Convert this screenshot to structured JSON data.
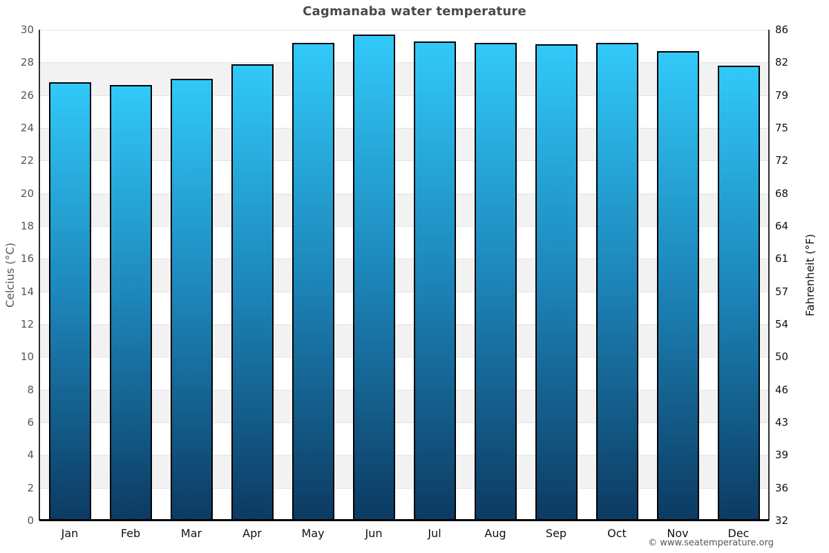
{
  "title": "Cagmanaba water temperature",
  "watermark": "© www.seatemperature.org",
  "colors": {
    "title": "#4a4a4a",
    "bar_top": "#31c9f8",
    "bar_mid": "#1d87bb",
    "bar_bottom": "#0c3a62",
    "bar_border": "#000000",
    "band_gray": "#f2f2f2",
    "band_white": "#ffffff",
    "gridline": "#e4e4e4",
    "left_axis_text": "#555555",
    "right_axis_text": "#111111",
    "baseline": "#000000"
  },
  "chart_data": {
    "type": "bar",
    "title": "Cagmanaba water temperature",
    "categories": [
      "Jan",
      "Feb",
      "Mar",
      "Apr",
      "May",
      "Jun",
      "Jul",
      "Aug",
      "Sep",
      "Oct",
      "Nov",
      "Dec"
    ],
    "values": [
      26.8,
      26.6,
      27.0,
      27.9,
      29.2,
      29.7,
      29.3,
      29.2,
      29.1,
      29.2,
      28.7,
      27.8
    ],
    "series_name": "Water temperature (°C)",
    "xlabel": "",
    "ylabel_left": "Celcius (°C)",
    "ylabel_right": "Fahrenheit (°F)",
    "ylim_celsius": [
      0,
      30
    ],
    "ylim_fahrenheit": [
      32,
      86
    ],
    "yticks_celsius": [
      "30",
      "28",
      "26",
      "24",
      "22",
      "20",
      "18",
      "16",
      "14",
      "12",
      "10",
      "8",
      "6",
      "4",
      "2",
      "0"
    ],
    "yticks_fahrenheit": [
      "86",
      "82",
      "79",
      "75",
      "72",
      "68",
      "64",
      "61",
      "57",
      "54",
      "50",
      "46",
      "43",
      "39",
      "36",
      "32"
    ],
    "grid": "horizontal alternating bands (white / light gray) with light gridlines every 2°C",
    "legend_position": "none",
    "bar_style": "vertical gradient light cyan top to dark navy bottom, black outline"
  }
}
